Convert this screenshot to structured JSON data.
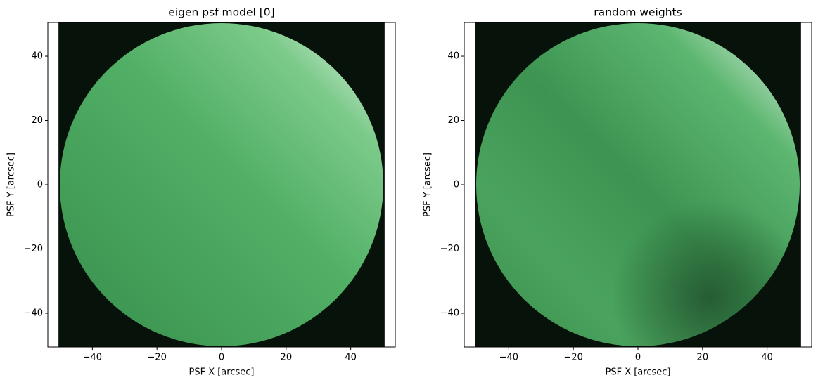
{
  "chart_data": [
    {
      "type": "image",
      "title": "eigen psf model [0]",
      "xlabel": "PSF X [arcsec]",
      "ylabel": "PSF Y [arcsec]",
      "extent": [
        -50.5,
        50.5,
        -50.5,
        50.5
      ],
      "background_color": "#07120a",
      "xlim": [
        -53.8,
        53.8
      ],
      "ylim": [
        -50.5,
        50.5
      ],
      "xticks": [
        {
          "value": -40,
          "label": "−40"
        },
        {
          "value": -20,
          "label": "−20"
        },
        0,
        20,
        40
      ],
      "yticks": [
        {
          "value": -40,
          "label": "−40"
        },
        {
          "value": -20,
          "label": "−20"
        },
        0,
        20,
        40
      ]
    },
    {
      "type": "image",
      "title": "random weights",
      "xlabel": "PSF X [arcsec]",
      "ylabel": "PSF Y [arcsec]",
      "extent": [
        -50.5,
        50.5,
        -50.5,
        50.5
      ],
      "background_color": "#07120a",
      "xlim": [
        -53.8,
        53.8
      ],
      "ylim": [
        -50.5,
        50.5
      ],
      "xticks": [
        {
          "value": -40,
          "label": "−40"
        },
        {
          "value": -20,
          "label": "−20"
        },
        0,
        20,
        40
      ],
      "yticks": [
        {
          "value": -40,
          "label": "−40"
        },
        {
          "value": -20,
          "label": "−20"
        },
        0,
        20,
        40
      ]
    }
  ]
}
